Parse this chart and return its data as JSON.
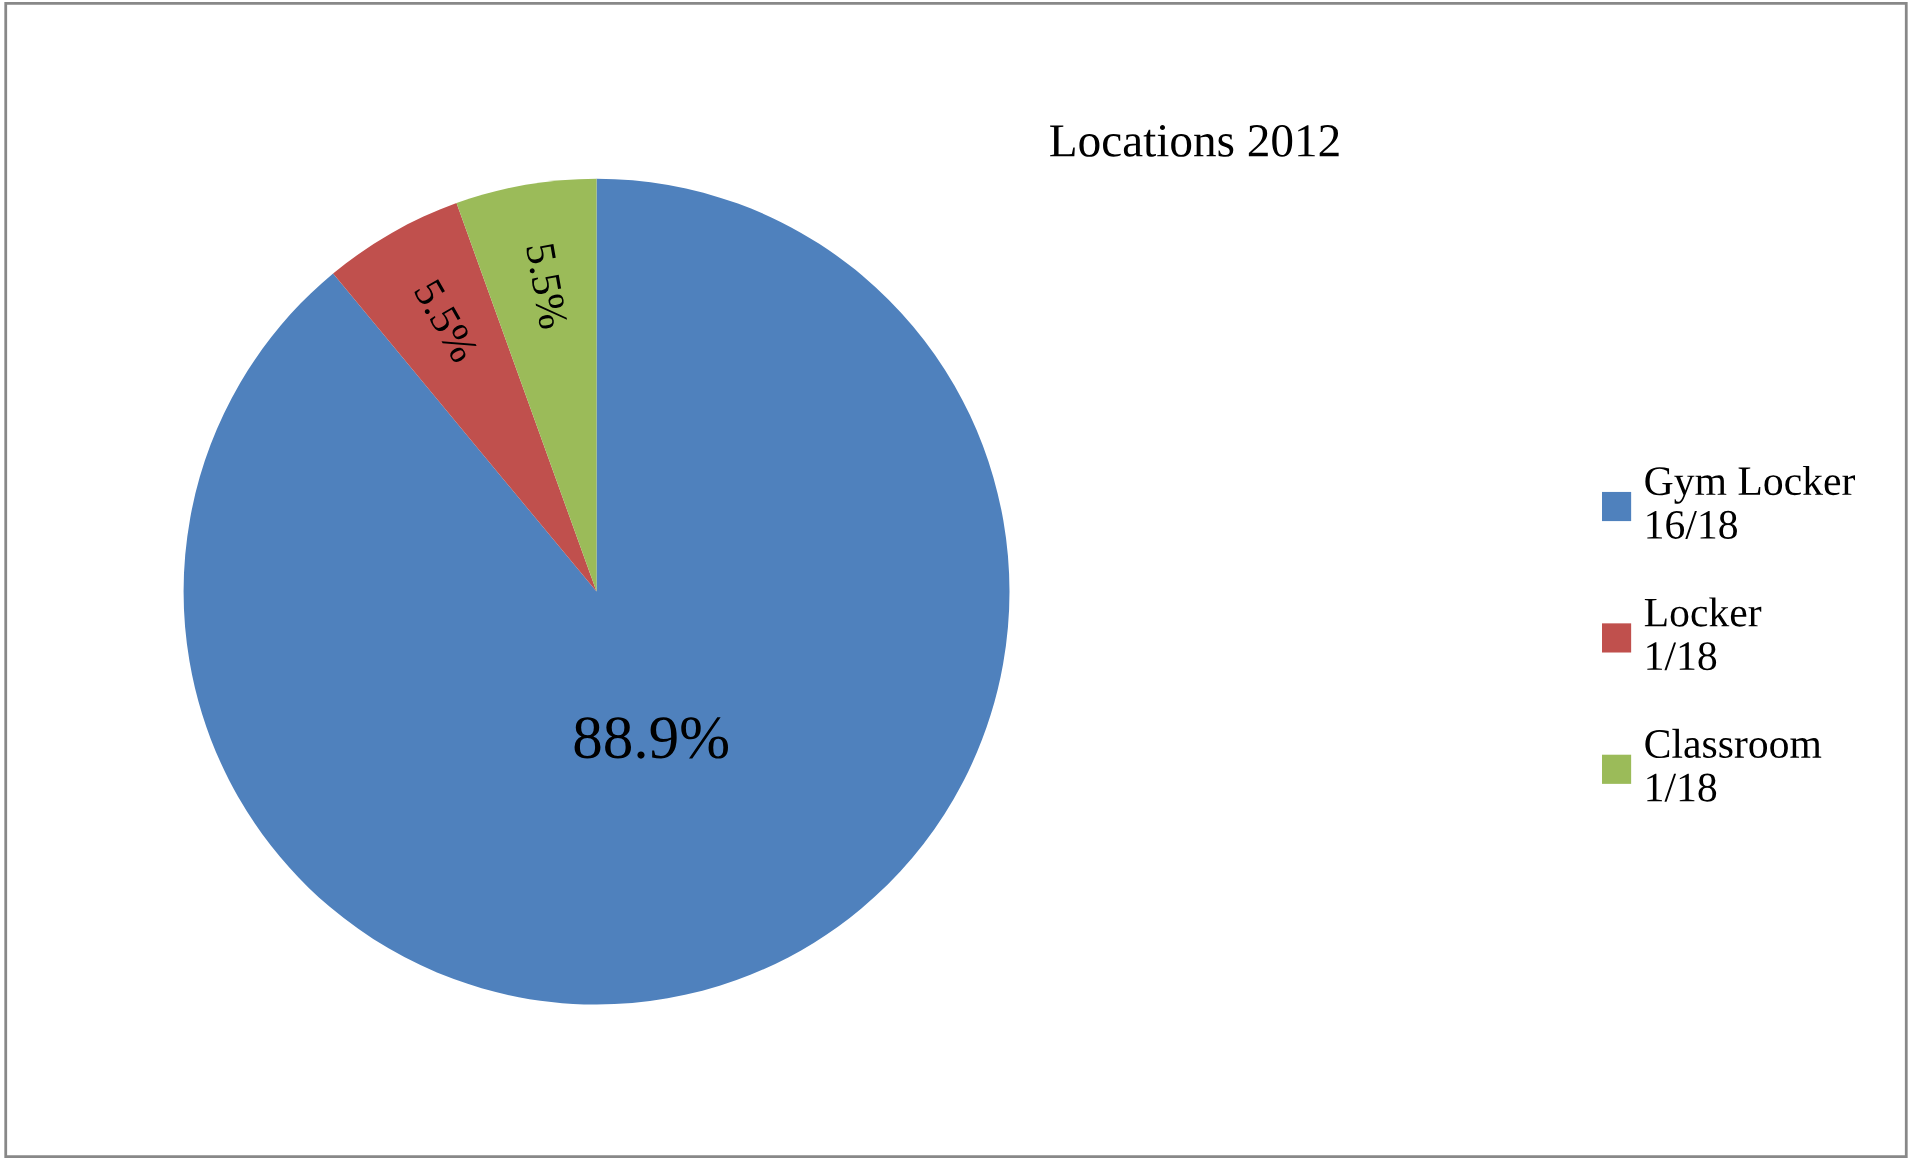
{
  "chart_data": {
    "type": "pie",
    "title": "Locations 2012",
    "categories": [
      "Gym Locker 16/18",
      "Locker 1/18",
      "Classroom 1/18"
    ],
    "values": [
      88.9,
      5.5,
      5.5
    ],
    "colors": [
      "#4f81bd",
      "#c0504d",
      "#9bbb59"
    ],
    "value_labels": [
      "88.9%",
      "5.5%",
      "5.5%"
    ],
    "legend": "right"
  }
}
